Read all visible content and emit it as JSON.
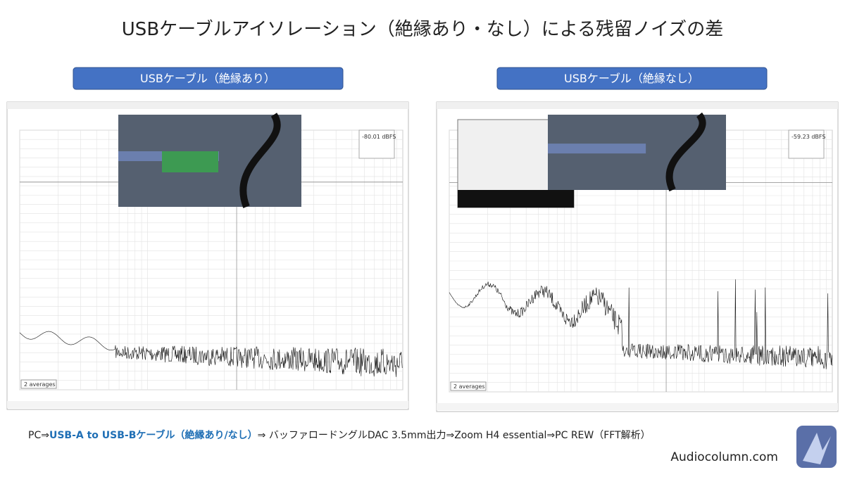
{
  "header": {
    "title": "USBケーブルアイソレーション（絶縁あり・なし）による残留ノイズの差"
  },
  "panels": [
    {
      "label": "USBケーブル（絶縁あり）",
      "readout": "-80.01 dBFS",
      "averages": "2 averages"
    },
    {
      "label": "USBケーブル（絶縁なし）",
      "readout": "-59.23 dBFS",
      "averages": "2 averages"
    }
  ],
  "footer": {
    "caption": [
      "PC⇒",
      "USB-A to USB-Bケーブル（絶縁あり/なし）",
      "⇒ バッファロードングルDAC 3.5mm出力⇒Zoom H4 essential⇒PC REW（FFT解析）"
    ],
    "site": "Audiocolumn.com"
  }
}
